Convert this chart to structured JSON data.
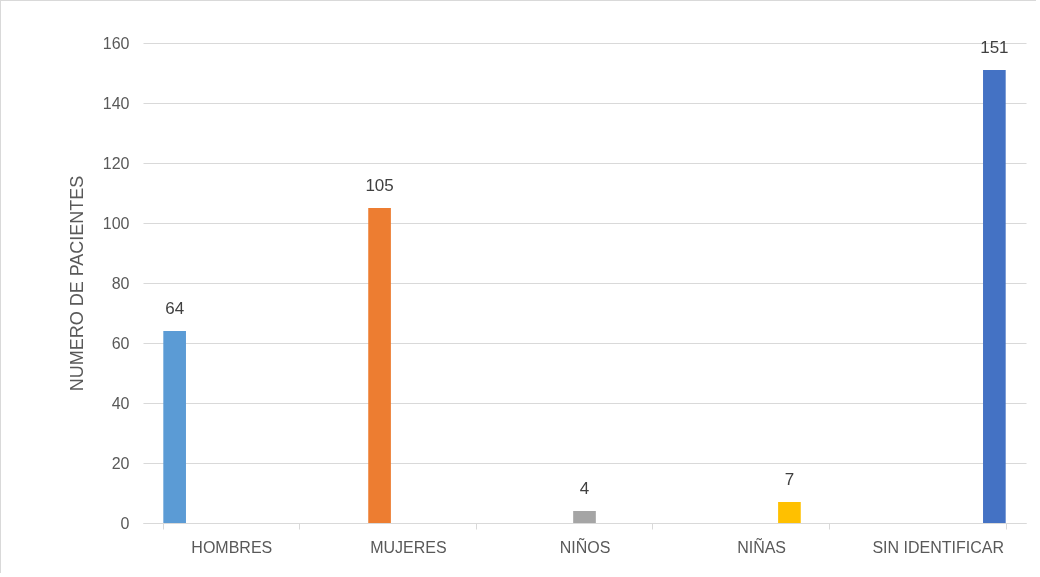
{
  "chart_data": {
    "type": "bar",
    "ylabel": "NUMERO DE PACIENTES",
    "categories": [
      "HOMBRES",
      "MUJERES",
      "NIÑOS",
      "NIÑAS",
      "SIN IDENTIFICAR"
    ],
    "series": [
      {
        "color": "#5b9bd5",
        "values": [
          64,
          null,
          null,
          null,
          null
        ]
      },
      {
        "color": "#ed7d31",
        "values": [
          null,
          105,
          null,
          null,
          null
        ]
      },
      {
        "color": "#a5a5a5",
        "values": [
          null,
          null,
          4,
          null,
          null
        ]
      },
      {
        "color": "#ffc000",
        "values": [
          null,
          null,
          null,
          7,
          null
        ]
      },
      {
        "color": "#4472c4",
        "values": [
          null,
          null,
          null,
          null,
          151
        ]
      }
    ],
    "ylim": [
      0,
      160
    ],
    "yticks": [
      0,
      20,
      40,
      60,
      80,
      100,
      120,
      140,
      160
    ],
    "grid": "y",
    "data_labels": true,
    "legend": false
  }
}
